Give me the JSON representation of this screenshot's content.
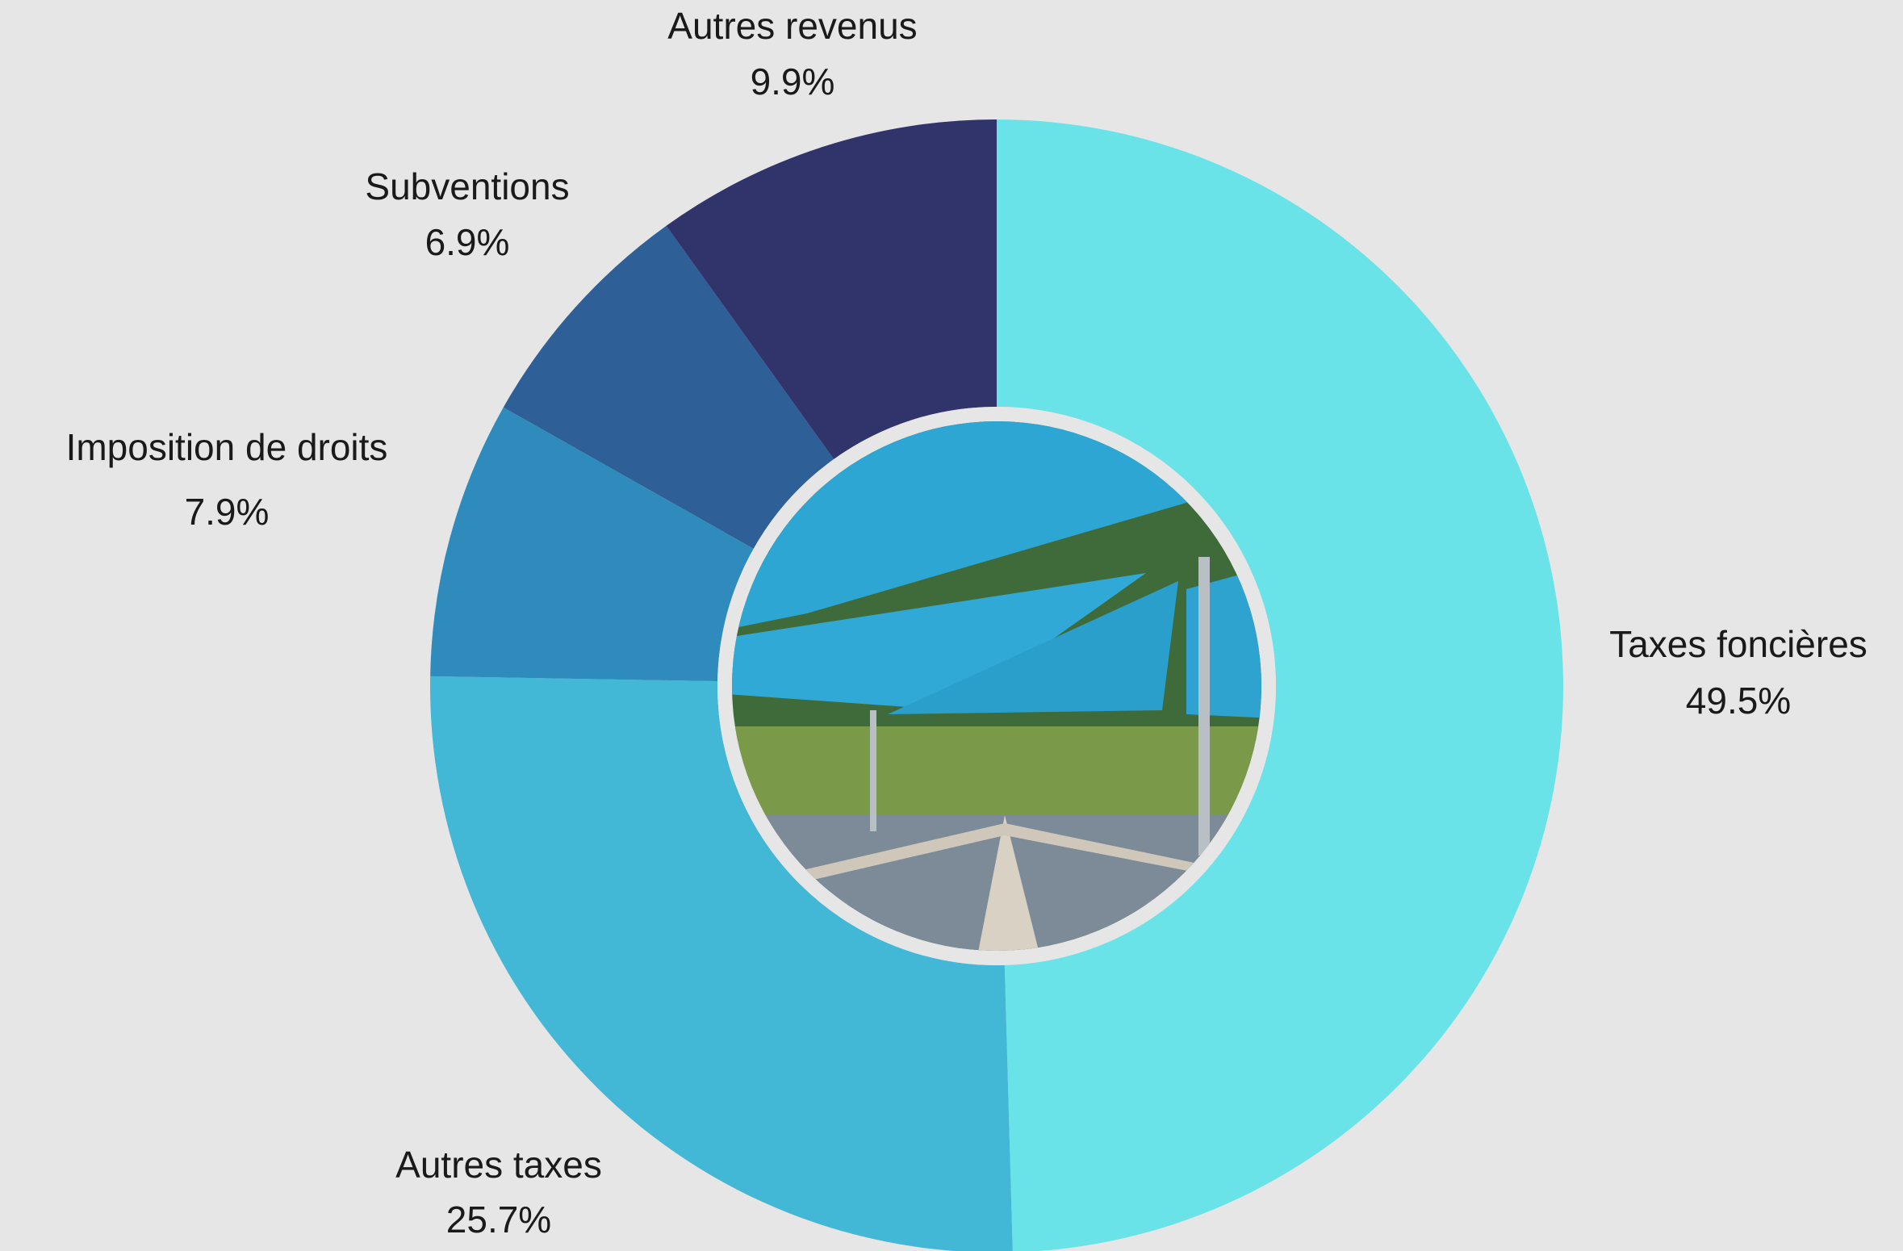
{
  "chart_data": {
    "type": "pie",
    "donut": true,
    "categories": [
      "Taxes foncières",
      "Autres taxes",
      "Imposition de droits",
      "Subventions",
      "Autres revenus"
    ],
    "values": [
      49.5,
      25.7,
      7.9,
      6.9,
      9.9
    ],
    "value_labels": [
      "49.5%",
      "25.7%",
      "7.9%",
      "6.9%",
      "9.9%"
    ],
    "colors": [
      "#6ae3e8",
      "#42b7d6",
      "#2e8bbb",
      "#2e5f97",
      "#31346b"
    ]
  }
}
